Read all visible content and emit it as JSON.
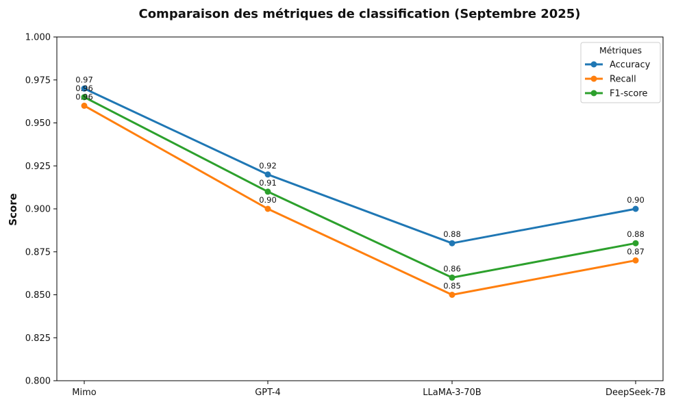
{
  "chart_data": {
    "type": "line",
    "title": "Comparaison des métriques de classification (Septembre 2025)",
    "xlabel": "",
    "ylabel": "Score",
    "categories": [
      "Mimo",
      "GPT-4",
      "LLaMA-3-70B",
      "DeepSeek-7B"
    ],
    "ylim": [
      0.8,
      1.0
    ],
    "yticks": [
      "0.800",
      "0.825",
      "0.850",
      "0.875",
      "0.900",
      "0.925",
      "0.950",
      "0.975",
      "1.000"
    ],
    "grid": false,
    "legend": {
      "title": "Métriques",
      "position": "top-right"
    },
    "series": [
      {
        "name": "Accuracy",
        "color": "#1f77b4",
        "values": [
          0.97,
          0.92,
          0.88,
          0.9
        ],
        "labels": [
          "0.97",
          "0.92",
          "0.88",
          "0.90"
        ]
      },
      {
        "name": "Recall",
        "color": "#ff7f0e",
        "values": [
          0.96,
          0.9,
          0.85,
          0.87
        ],
        "labels": [
          "0.96",
          "0.90",
          "0.85",
          "0.87"
        ]
      },
      {
        "name": "F1-score",
        "color": "#2ca02c",
        "values": [
          0.965,
          0.91,
          0.86,
          0.88
        ],
        "labels": [
          "0.96",
          "0.91",
          "0.86",
          "0.88"
        ]
      }
    ]
  }
}
